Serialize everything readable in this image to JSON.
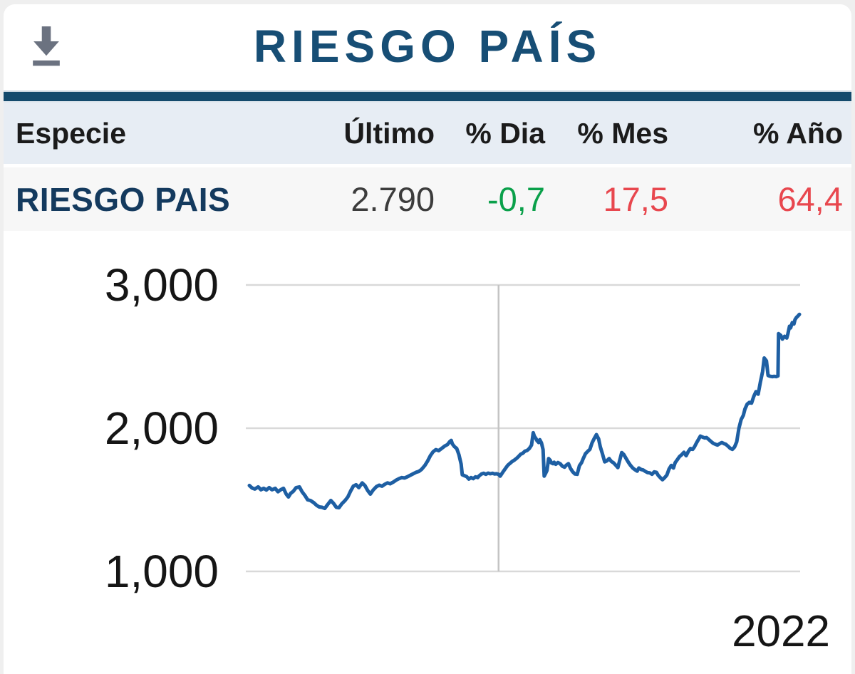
{
  "header": {
    "title": "RIESGO PAÍS",
    "download_icon": "download-icon"
  },
  "quote_table": {
    "columns": [
      "Especie",
      "Último",
      "% Dia",
      "% Mes",
      "% Año"
    ],
    "row": {
      "especie": "RIESGO PAIS",
      "ultimo": "2.790",
      "pct_dia": "-0,7",
      "pct_mes": "17,5",
      "pct_ano": "64,4"
    }
  },
  "colors": {
    "title": "#174e75",
    "bar": "#144a6c",
    "header_bg": "#e7edf4",
    "row_bg": "#f7f7f7",
    "especie": "#143a5e",
    "value": "#3c3c3c",
    "positive": "#0aa04a",
    "negative": "#e8474e",
    "line": "#1e5fa3",
    "grid": "#d9d9d9",
    "grid_vertical": "#c4c4c4",
    "icon": "#6b7280"
  },
  "chart_data": {
    "type": "line",
    "title": "RIESGO PAIS",
    "xlabel": "",
    "ylabel": "",
    "ylim": [
      1000,
      3000
    ],
    "yticks": [
      3000,
      2000,
      1000
    ],
    "ytick_labels": [
      "3,000",
      "2,000",
      "1,000"
    ],
    "xtick_labels": [
      "2022"
    ],
    "legend": "none",
    "grid": {
      "horizontal": true,
      "vertical_line_fraction": 0.456
    },
    "last_value": 2790,
    "series": [
      {
        "name": "RIESGO PAIS",
        "points": [
          [
            0.0,
            1600
          ],
          [
            0.005,
            1582
          ],
          [
            0.01,
            1575
          ],
          [
            0.016,
            1590
          ],
          [
            0.021,
            1570
          ],
          [
            0.026,
            1580
          ],
          [
            0.031,
            1568
          ],
          [
            0.036,
            1585
          ],
          [
            0.041,
            1570
          ],
          [
            0.047,
            1580
          ],
          [
            0.052,
            1556
          ],
          [
            0.057,
            1570
          ],
          [
            0.062,
            1580
          ],
          [
            0.067,
            1540
          ],
          [
            0.071,
            1520
          ],
          [
            0.075,
            1545
          ],
          [
            0.08,
            1560
          ],
          [
            0.085,
            1585
          ],
          [
            0.091,
            1590
          ],
          [
            0.096,
            1555
          ],
          [
            0.101,
            1530
          ],
          [
            0.106,
            1500
          ],
          [
            0.111,
            1495
          ],
          [
            0.117,
            1480
          ],
          [
            0.122,
            1462
          ],
          [
            0.127,
            1450
          ],
          [
            0.132,
            1448
          ],
          [
            0.137,
            1440
          ],
          [
            0.142,
            1465
          ],
          [
            0.148,
            1495
          ],
          [
            0.153,
            1475
          ],
          [
            0.158,
            1448
          ],
          [
            0.163,
            1445
          ],
          [
            0.168,
            1472
          ],
          [
            0.174,
            1495
          ],
          [
            0.179,
            1520
          ],
          [
            0.184,
            1560
          ],
          [
            0.189,
            1595
          ],
          [
            0.194,
            1605
          ],
          [
            0.199,
            1585
          ],
          [
            0.205,
            1618
          ],
          [
            0.21,
            1600
          ],
          [
            0.215,
            1565
          ],
          [
            0.22,
            1540
          ],
          [
            0.225,
            1568
          ],
          [
            0.231,
            1592
          ],
          [
            0.236,
            1602
          ],
          [
            0.241,
            1595
          ],
          [
            0.246,
            1608
          ],
          [
            0.251,
            1618
          ],
          [
            0.256,
            1612
          ],
          [
            0.262,
            1625
          ],
          [
            0.267,
            1638
          ],
          [
            0.272,
            1648
          ],
          [
            0.277,
            1655
          ],
          [
            0.282,
            1652
          ],
          [
            0.288,
            1662
          ],
          [
            0.293,
            1672
          ],
          [
            0.298,
            1682
          ],
          [
            0.303,
            1692
          ],
          [
            0.308,
            1698
          ],
          [
            0.313,
            1712
          ],
          [
            0.319,
            1740
          ],
          [
            0.324,
            1770
          ],
          [
            0.329,
            1808
          ],
          [
            0.334,
            1835
          ],
          [
            0.339,
            1850
          ],
          [
            0.344,
            1843
          ],
          [
            0.35,
            1860
          ],
          [
            0.355,
            1875
          ],
          [
            0.36,
            1885
          ],
          [
            0.364,
            1905
          ],
          [
            0.367,
            1915
          ],
          [
            0.369,
            1890
          ],
          [
            0.373,
            1870
          ],
          [
            0.377,
            1858
          ],
          [
            0.381,
            1815
          ],
          [
            0.385,
            1750
          ],
          [
            0.387,
            1675
          ],
          [
            0.391,
            1668
          ],
          [
            0.395,
            1662
          ],
          [
            0.399,
            1645
          ],
          [
            0.403,
            1655
          ],
          [
            0.407,
            1648
          ],
          [
            0.411,
            1660
          ],
          [
            0.415,
            1655
          ],
          [
            0.418,
            1668
          ],
          [
            0.422,
            1680
          ],
          [
            0.426,
            1685
          ],
          [
            0.43,
            1678
          ],
          [
            0.434,
            1686
          ],
          [
            0.438,
            1682
          ],
          [
            0.442,
            1685
          ],
          [
            0.446,
            1680
          ],
          [
            0.449,
            1682
          ],
          [
            0.453,
            1678
          ],
          [
            0.456,
            1665
          ],
          [
            0.459,
            1682
          ],
          [
            0.462,
            1700
          ],
          [
            0.466,
            1722
          ],
          [
            0.47,
            1742
          ],
          [
            0.474,
            1755
          ],
          [
            0.478,
            1768
          ],
          [
            0.482,
            1778
          ],
          [
            0.486,
            1790
          ],
          [
            0.49,
            1805
          ],
          [
            0.493,
            1818
          ],
          [
            0.497,
            1825
          ],
          [
            0.501,
            1840
          ],
          [
            0.505,
            1845
          ],
          [
            0.509,
            1858
          ],
          [
            0.513,
            1882
          ],
          [
            0.516,
            1968
          ],
          [
            0.518,
            1945
          ],
          [
            0.521,
            1928
          ],
          [
            0.523,
            1912
          ],
          [
            0.526,
            1900
          ],
          [
            0.528,
            1920
          ],
          [
            0.531,
            1898
          ],
          [
            0.534,
            1850
          ],
          [
            0.536,
            1665
          ],
          [
            0.539,
            1688
          ],
          [
            0.541,
            1705
          ],
          [
            0.544,
            1788
          ],
          [
            0.547,
            1775
          ],
          [
            0.549,
            1758
          ],
          [
            0.552,
            1752
          ],
          [
            0.554,
            1762
          ],
          [
            0.557,
            1748
          ],
          [
            0.561,
            1760
          ],
          [
            0.565,
            1752
          ],
          [
            0.569,
            1735
          ],
          [
            0.573,
            1728
          ],
          [
            0.576,
            1742
          ],
          [
            0.58,
            1752
          ],
          [
            0.584,
            1718
          ],
          [
            0.588,
            1695
          ],
          [
            0.592,
            1680
          ],
          [
            0.596,
            1678
          ],
          [
            0.6,
            1738
          ],
          [
            0.604,
            1760
          ],
          [
            0.607,
            1788
          ],
          [
            0.611,
            1822
          ],
          [
            0.615,
            1838
          ],
          [
            0.619,
            1852
          ],
          [
            0.623,
            1898
          ],
          [
            0.627,
            1928
          ],
          [
            0.631,
            1955
          ],
          [
            0.635,
            1925
          ],
          [
            0.638,
            1870
          ],
          [
            0.642,
            1820
          ],
          [
            0.646,
            1765
          ],
          [
            0.65,
            1772
          ],
          [
            0.654,
            1788
          ],
          [
            0.658,
            1768
          ],
          [
            0.662,
            1758
          ],
          [
            0.666,
            1742
          ],
          [
            0.67,
            1725
          ],
          [
            0.673,
            1772
          ],
          [
            0.677,
            1830
          ],
          [
            0.681,
            1815
          ],
          [
            0.685,
            1788
          ],
          [
            0.689,
            1762
          ],
          [
            0.693,
            1740
          ],
          [
            0.697,
            1722
          ],
          [
            0.701,
            1710
          ],
          [
            0.705,
            1700
          ],
          [
            0.708,
            1722
          ],
          [
            0.712,
            1712
          ],
          [
            0.716,
            1708
          ],
          [
            0.72,
            1698
          ],
          [
            0.724,
            1690
          ],
          [
            0.728,
            1688
          ],
          [
            0.732,
            1678
          ],
          [
            0.736,
            1695
          ],
          [
            0.74,
            1692
          ],
          [
            0.743,
            1672
          ],
          [
            0.747,
            1655
          ],
          [
            0.751,
            1640
          ],
          [
            0.755,
            1655
          ],
          [
            0.759,
            1672
          ],
          [
            0.763,
            1715
          ],
          [
            0.767,
            1740
          ],
          [
            0.771,
            1722
          ],
          [
            0.774,
            1758
          ],
          [
            0.778,
            1780
          ],
          [
            0.782,
            1802
          ],
          [
            0.786,
            1815
          ],
          [
            0.79,
            1832
          ],
          [
            0.794,
            1808
          ],
          [
            0.798,
            1838
          ],
          [
            0.802,
            1858
          ],
          [
            0.806,
            1852
          ],
          [
            0.809,
            1868
          ],
          [
            0.813,
            1898
          ],
          [
            0.817,
            1925
          ],
          [
            0.82,
            1945
          ],
          [
            0.824,
            1938
          ],
          [
            0.828,
            1932
          ],
          [
            0.831,
            1935
          ],
          [
            0.835,
            1922
          ],
          [
            0.839,
            1908
          ],
          [
            0.843,
            1895
          ],
          [
            0.847,
            1888
          ],
          [
            0.851,
            1882
          ],
          [
            0.855,
            1892
          ],
          [
            0.859,
            1900
          ],
          [
            0.863,
            1892
          ],
          [
            0.866,
            1888
          ],
          [
            0.87,
            1875
          ],
          [
            0.874,
            1860
          ],
          [
            0.878,
            1852
          ],
          [
            0.882,
            1868
          ],
          [
            0.886,
            1905
          ],
          [
            0.89,
            2000
          ],
          [
            0.894,
            2060
          ],
          [
            0.898,
            2090
          ],
          [
            0.901,
            2135
          ],
          [
            0.905,
            2168
          ],
          [
            0.909,
            2180
          ],
          [
            0.913,
            2175
          ],
          [
            0.917,
            2222
          ],
          [
            0.921,
            2255
          ],
          [
            0.925,
            2238
          ],
          [
            0.929,
            2322
          ],
          [
            0.933,
            2395
          ],
          [
            0.936,
            2490
          ],
          [
            0.94,
            2470
          ],
          [
            0.943,
            2368
          ],
          [
            0.947,
            2362
          ],
          [
            0.951,
            2360
          ],
          [
            0.954,
            2362
          ],
          [
            0.958,
            2360
          ],
          [
            0.961,
            2365
          ],
          [
            0.962,
            2660
          ],
          [
            0.966,
            2648
          ],
          [
            0.969,
            2622
          ],
          [
            0.973,
            2642
          ],
          [
            0.977,
            2630
          ],
          [
            0.979,
            2658
          ],
          [
            0.982,
            2712
          ],
          [
            0.984,
            2700
          ],
          [
            0.987,
            2738
          ],
          [
            0.99,
            2728
          ],
          [
            0.992,
            2758
          ],
          [
            0.995,
            2775
          ],
          [
            0.997,
            2782
          ],
          [
            1.0,
            2795
          ]
        ]
      }
    ]
  }
}
